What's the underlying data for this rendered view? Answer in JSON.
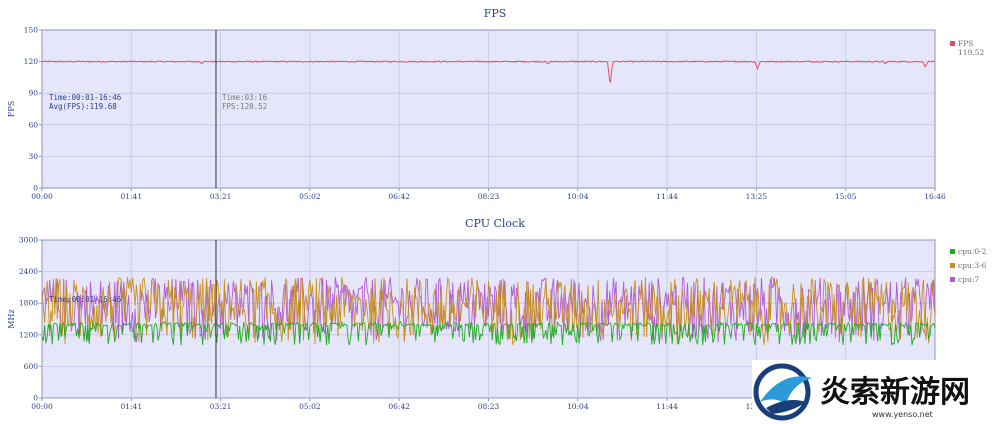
{
  "chart_data": [
    {
      "type": "line",
      "title": "FPS",
      "ylabel": "FPS",
      "ylim": [
        0,
        150
      ],
      "yticks": [
        "0",
        "30",
        "60",
        "90",
        "120",
        "150"
      ],
      "xlim_seconds": [
        0,
        1006
      ],
      "xticks": [
        "00:00",
        "01:41",
        "03:21",
        "05:02",
        "06:42",
        "08:23",
        "10:04",
        "11:44",
        "13:25",
        "15:05",
        "16:46"
      ],
      "grid": true,
      "legend_position": "right",
      "series": [
        {
          "name": "FPS",
          "color": "#e0506c",
          "legend_value": "119.52",
          "baseline": 120,
          "dips": [
            {
              "t": 640,
              "value": 97
            },
            {
              "t": 806,
              "value": 113
            },
            {
              "t": 995,
              "value": 115
            },
            {
              "t": 180,
              "value": 118
            },
            {
              "t": 570,
              "value": 118
            },
            {
              "t": 950,
              "value": 118
            }
          ]
        }
      ],
      "cursor": {
        "t": 196,
        "label_lines": [
          "Time:03:16",
          "FPS:120.52"
        ]
      },
      "summary_lines": [
        "Time:00:01-16:46",
        "Avg(FPS):119.68"
      ]
    },
    {
      "type": "line",
      "title": "CPU Clock",
      "ylabel": "MHz",
      "ylim": [
        0,
        3000
      ],
      "yticks": [
        "0",
        "600",
        "1200",
        "1800",
        "2400",
        "3000"
      ],
      "xlim_seconds": [
        0,
        1006
      ],
      "xticks": [
        "00:00",
        "01:41",
        "03:21",
        "05:02",
        "06:42",
        "08:23",
        "10:04",
        "11:44",
        "13:25",
        "15:05",
        "16:46"
      ],
      "grid": true,
      "legend_position": "right",
      "series": [
        {
          "name": "cpu:0-2",
          "color": "#22aa22",
          "range": [
            1000,
            1450
          ]
        },
        {
          "name": "cpu:3-6",
          "color": "#c8901e",
          "range": [
            1000,
            2300
          ]
        },
        {
          "name": "cpu:7",
          "color": "#b25ad6",
          "range": [
            1050,
            2300
          ]
        }
      ],
      "cursor": {
        "t": 196
      },
      "summary_lines": [
        "Time:00:01-16:46"
      ]
    }
  ],
  "watermark": {
    "text": "炎索新游网",
    "url": "www.yenso.net"
  }
}
